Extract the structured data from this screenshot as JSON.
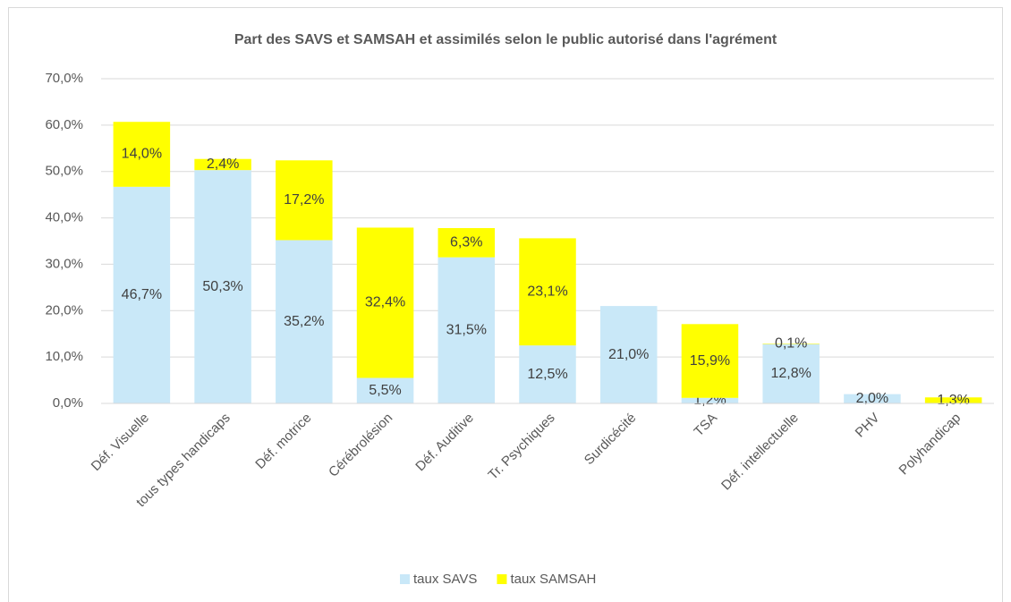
{
  "chart_data": {
    "type": "stacked-bar",
    "title": "Part des SAVS et SAMSAH et assimilés selon le public autorisé dans l'agrément",
    "categories": [
      "Déf. Visuelle",
      "tous types handicaps",
      "Déf. motrice",
      "Cérébrolésion",
      "Déf. Auditive",
      "Tr. Psychiques",
      "Surdicécité",
      "TSA",
      "Déf. intellectuelle",
      "PHV",
      "Polyhandicap"
    ],
    "series": [
      {
        "name": "taux SAVS",
        "color": "#c9e8f8",
        "values": [
          46.7,
          50.3,
          35.2,
          5.5,
          31.5,
          12.5,
          21.0,
          1.2,
          12.8,
          2.0,
          null
        ],
        "value_labels": [
          "46,7%",
          "50,3%",
          "35,2%",
          "5,5%",
          "31,5%",
          "12,5%",
          "21,0%",
          "1,2%",
          "12,8%",
          "2,0%",
          null
        ]
      },
      {
        "name": "taux SAMSAH",
        "color": "#ffff00",
        "values": [
          14.0,
          2.4,
          17.2,
          32.4,
          6.3,
          23.1,
          null,
          15.9,
          0.1,
          null,
          1.3
        ],
        "value_labels": [
          "14,0%",
          "2,4%",
          "17,2%",
          "32,4%",
          "6,3%",
          "23,1%",
          null,
          "15,9%",
          "0,1%",
          null,
          "1,3%"
        ]
      }
    ],
    "ylim": [
      0,
      70
    ],
    "yticks": [
      {
        "value": 0,
        "label": "0,0%"
      },
      {
        "value": 10,
        "label": "10,0%"
      },
      {
        "value": 20,
        "label": "20,0%"
      },
      {
        "value": 30,
        "label": "30,0%"
      },
      {
        "value": 40,
        "label": "40,0%"
      },
      {
        "value": 50,
        "label": "50,0%"
      },
      {
        "value": 60,
        "label": "60,0%"
      },
      {
        "value": 70,
        "label": "70,0%"
      }
    ],
    "grid": true,
    "legend": "bottom"
  }
}
